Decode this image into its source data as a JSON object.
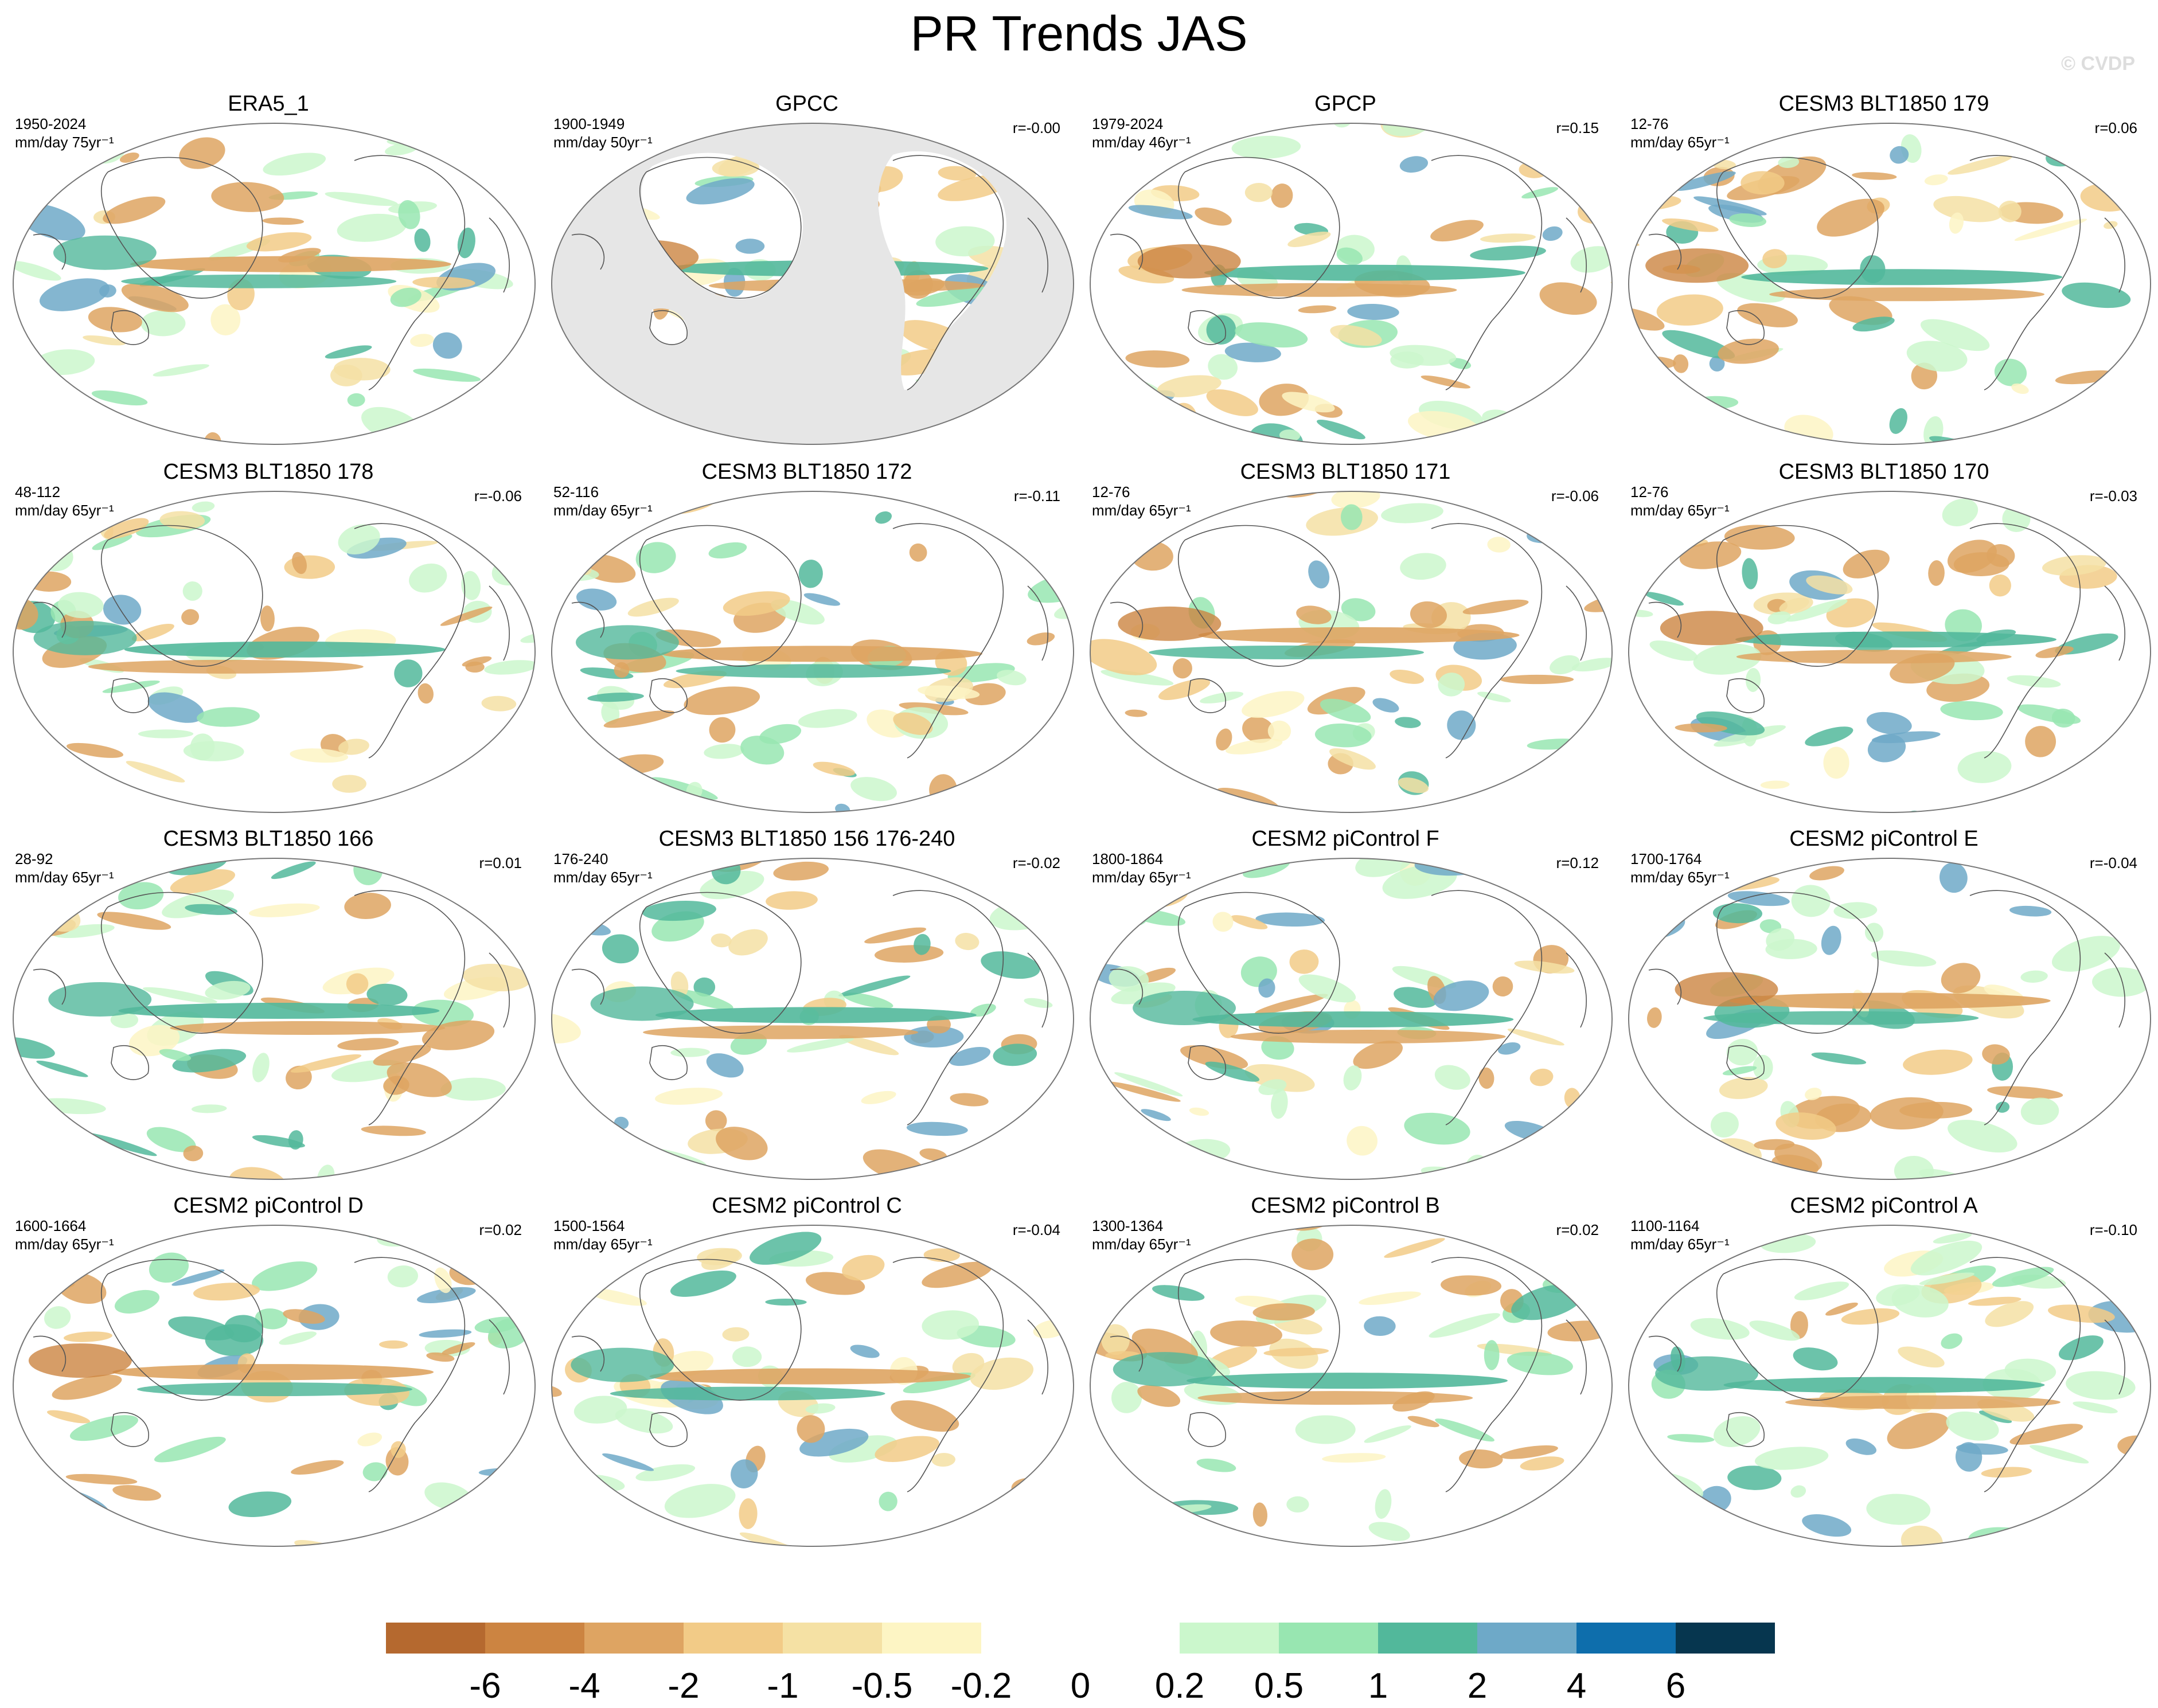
{
  "figure": {
    "title": "PR Trends JAS",
    "copyright": "© CVDP"
  },
  "panels": [
    {
      "title": "ERA5_1",
      "period": "1950-2024",
      "units": "mm/day 75yr⁻¹",
      "corr": "",
      "variant": 0,
      "land_mask": false
    },
    {
      "title": "GPCC",
      "period": "1900-1949",
      "units": "mm/day 50yr⁻¹",
      "corr": "r=-0.00",
      "variant": 1,
      "land_mask": true
    },
    {
      "title": "GPCP",
      "period": "1979-2024",
      "units": "mm/day 46yr⁻¹",
      "corr": "r=0.15",
      "variant": 2,
      "land_mask": false
    },
    {
      "title": "CESM3 BLT1850 179",
      "period": "12-76",
      "units": "mm/day 65yr⁻¹",
      "corr": "r=0.06",
      "variant": 3,
      "land_mask": false
    },
    {
      "title": "CESM3 BLT1850 178",
      "period": "48-112",
      "units": "mm/day 65yr⁻¹",
      "corr": "r=-0.06",
      "variant": 4,
      "land_mask": false
    },
    {
      "title": "CESM3 BLT1850 172",
      "period": "52-116",
      "units": "mm/day 65yr⁻¹",
      "corr": "r=-0.11",
      "variant": 5,
      "land_mask": false
    },
    {
      "title": "CESM3 BLT1850 171",
      "period": "12-76",
      "units": "mm/day 65yr⁻¹",
      "corr": "r=-0.06",
      "variant": 6,
      "land_mask": false
    },
    {
      "title": "CESM3 BLT1850 170",
      "period": "12-76",
      "units": "mm/day 65yr⁻¹",
      "corr": "r=-0.03",
      "variant": 7,
      "land_mask": false
    },
    {
      "title": "CESM3 BLT1850 166",
      "period": "28-92",
      "units": "mm/day 65yr⁻¹",
      "corr": "r=0.01",
      "variant": 8,
      "land_mask": false
    },
    {
      "title": "CESM3 BLT1850 156 176-240",
      "period": "176-240",
      "units": "mm/day 65yr⁻¹",
      "corr": "r=-0.02",
      "variant": 9,
      "land_mask": false
    },
    {
      "title": "CESM2 piControl F",
      "period": "1800-1864",
      "units": "mm/day 65yr⁻¹",
      "corr": "r=0.12",
      "variant": 10,
      "land_mask": false
    },
    {
      "title": "CESM2 piControl E",
      "period": "1700-1764",
      "units": "mm/day 65yr⁻¹",
      "corr": "r=-0.04",
      "variant": 11,
      "land_mask": false
    },
    {
      "title": "CESM2 piControl D",
      "period": "1600-1664",
      "units": "mm/day 65yr⁻¹",
      "corr": "r=0.02",
      "variant": 12,
      "land_mask": false
    },
    {
      "title": "CESM2 piControl C",
      "period": "1500-1564",
      "units": "mm/day 65yr⁻¹",
      "corr": "r=-0.04",
      "variant": 13,
      "land_mask": false
    },
    {
      "title": "CESM2 piControl B",
      "period": "1300-1364",
      "units": "mm/day 65yr⁻¹",
      "corr": "r=0.02",
      "variant": 14,
      "land_mask": false
    },
    {
      "title": "CESM2 piControl A",
      "period": "1100-1164",
      "units": "mm/day 65yr⁻¹",
      "corr": "r=-0.10",
      "variant": 15,
      "land_mask": false
    }
  ],
  "colorbar": {
    "colors": [
      "#b5692f",
      "#cc8441",
      "#dea462",
      "#f2cb87",
      "#f5e1a4",
      "#fdf5c4",
      "#ffffff",
      "#ffffff",
      "#cbf7cc",
      "#98e6b1",
      "#52b89b",
      "#6ea9c8",
      "#0e6eac",
      "#06364f"
    ],
    "labels": [
      "-6",
      "-4",
      "-2",
      "-1",
      "-0.5",
      "-0.2",
      "0",
      "0.2",
      "0.5",
      "1",
      "2",
      "4",
      "6"
    ]
  }
}
